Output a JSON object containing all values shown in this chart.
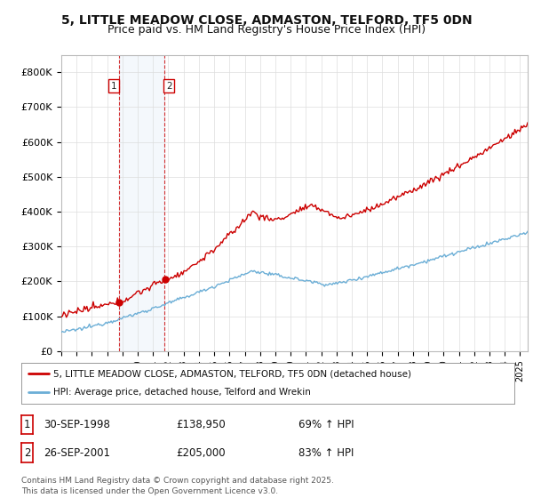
{
  "title_line1": "5, LITTLE MEADOW CLOSE, ADMASTON, TELFORD, TF5 0DN",
  "title_line2": "Price paid vs. HM Land Registry's House Price Index (HPI)",
  "ylim": [
    0,
    850000
  ],
  "yticks": [
    0,
    100000,
    200000,
    300000,
    400000,
    500000,
    600000,
    700000,
    800000
  ],
  "ytick_labels": [
    "£0",
    "£100K",
    "£200K",
    "£300K",
    "£400K",
    "£500K",
    "£600K",
    "£700K",
    "£800K"
  ],
  "hpi_color": "#6baed6",
  "price_color": "#cc0000",
  "sale1_year": 1998.75,
  "sale1_price": 138950,
  "sale2_year": 2001.75,
  "sale2_price": 205000,
  "legend_property": "5, LITTLE MEADOW CLOSE, ADMASTON, TELFORD, TF5 0DN (detached house)",
  "legend_hpi": "HPI: Average price, detached house, Telford and Wrekin",
  "table_rows": [
    {
      "num": "1",
      "date": "30-SEP-1998",
      "price": "£138,950",
      "change": "69% ↑ HPI"
    },
    {
      "num": "2",
      "date": "26-SEP-2001",
      "price": "£205,000",
      "change": "83% ↑ HPI"
    }
  ],
  "footnote": "Contains HM Land Registry data © Crown copyright and database right 2025.\nThis data is licensed under the Open Government Licence v3.0.",
  "background_color": "#ffffff",
  "grid_color": "#dddddd",
  "title_fontsize": 10,
  "subtitle_fontsize": 9,
  "label1_border_color": "#cc0000",
  "label2_border_color": "#cc0000"
}
